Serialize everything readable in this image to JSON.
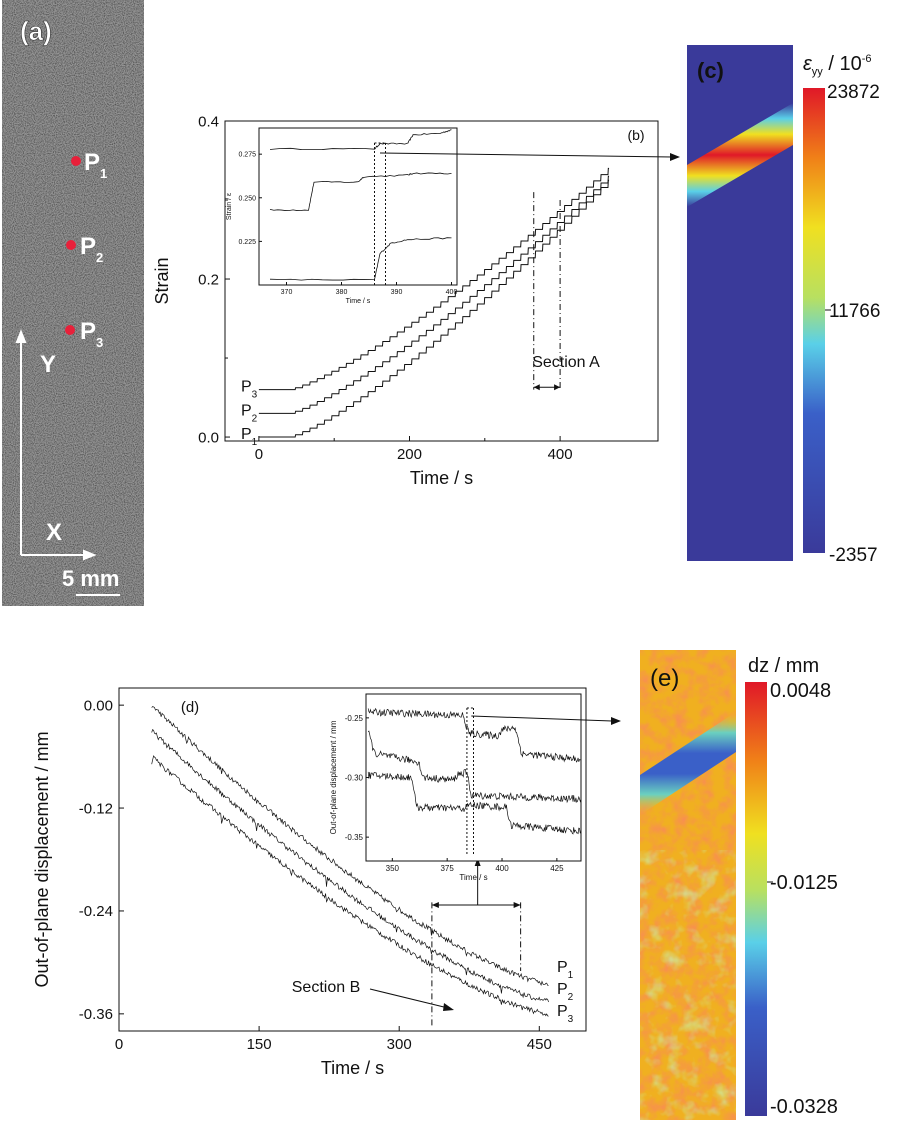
{
  "panels": {
    "a": {
      "label": "(a)",
      "points": [
        "P",
        "P",
        "P"
      ],
      "point_subs": [
        "1",
        "2",
        "3"
      ],
      "axis_y": "Y",
      "axis_x": "X",
      "scale": "5 mm"
    },
    "c": {
      "label": "(c)",
      "colorbar_title": "ε",
      "colorbar_sub": "yy",
      "colorbar_unit": " / 10",
      "colorbar_exp": "-6",
      "ticks": [
        "23872",
        "11766",
        "-2357"
      ]
    },
    "e": {
      "label": "(e)",
      "colorbar_title": "dz / mm",
      "ticks": [
        "0.0048",
        "-0.0125",
        "-0.0328"
      ]
    }
  },
  "chart_data": [
    {
      "id": "b",
      "type": "line",
      "label": "(b)",
      "xlabel": "Time / s",
      "ylabel": "Strain",
      "xlim": [
        -45,
        530
      ],
      "ylim": [
        -0.005,
        0.4
      ],
      "xticks": [
        "0",
        "200",
        "400"
      ],
      "yticks": [
        "0.0",
        "0.2",
        "0.4"
      ],
      "annotation": "Section A",
      "section_range": [
        365,
        400
      ],
      "series": [
        {
          "name": "P",
          "sub": "1",
          "offset": 0.0,
          "end": 0.325,
          "start_t": 40,
          "end_t": 465
        },
        {
          "name": "P",
          "sub": "2",
          "offset": 0.03,
          "end": 0.33,
          "start_t": 40,
          "end_t": 465
        },
        {
          "name": "P",
          "sub": "3",
          "offset": 0.06,
          "end": 0.34,
          "start_t": 40,
          "end_t": 465
        }
      ],
      "inset": {
        "xlabel": "Time / s",
        "ylabel": "Strain / ε",
        "xlim": [
          365,
          401
        ],
        "ylim": [
          0.2,
          0.29
        ],
        "xticks": [
          "370",
          "380",
          "390",
          "400"
        ],
        "yticks": [
          "0.225",
          "0.250",
          "0.275"
        ]
      }
    },
    {
      "id": "d",
      "type": "line",
      "label": "(d)",
      "xlabel": "Time / s",
      "ylabel": "Out-of-plane displacement / mm",
      "xlim": [
        0,
        500
      ],
      "ylim": [
        -0.38,
        0.02
      ],
      "xticks": [
        "0",
        "150",
        "300",
        "450"
      ],
      "yticks": [
        "0.00",
        "-0.12",
        "-0.24",
        "-0.36"
      ],
      "annotation": "Section B",
      "section_range": [
        335,
        430
      ],
      "series": [
        {
          "name": "P",
          "sub": "1",
          "start": 0.0,
          "end": -0.325,
          "start_t": 35,
          "end_t": 460
        },
        {
          "name": "P",
          "sub": "2",
          "start": -0.03,
          "end": -0.345,
          "start_t": 35,
          "end_t": 460
        },
        {
          "name": "P",
          "sub": "3",
          "start": -0.06,
          "end": -0.36,
          "start_t": 35,
          "end_t": 460
        }
      ],
      "inset": {
        "xlabel": "Time / s",
        "ylabel": "Out-of-plane displacement / mm",
        "xlim": [
          338,
          436
        ],
        "ylim": [
          -0.37,
          -0.23
        ],
        "xticks": [
          "350",
          "375",
          "400",
          "425"
        ],
        "yticks": [
          "-0.25",
          "-0.30",
          "-0.35"
        ]
      }
    }
  ]
}
